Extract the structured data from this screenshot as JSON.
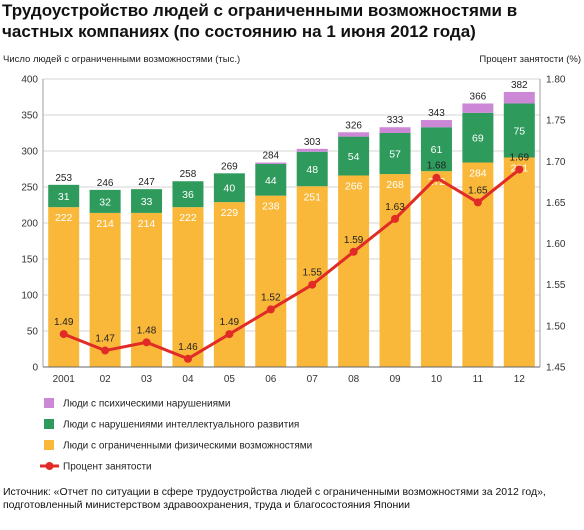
{
  "title": "Трудоустройство людей с ограниченными возможностями в частных компаниях (по состоянию на 1 июня 2012 года)",
  "source": "Источник: «Отчет по ситуации в сфере трудоустройства людей с ограниченными возможностями за 2012 год», подготовленный министерством здравоохранения, труда и благосостояния Японии",
  "colors": {
    "physical": "#f9b839",
    "intellectual": "#2e9b5c",
    "mental": "#cc88d6",
    "percent_line": "#e02b26",
    "grid": "#c8c8c8"
  },
  "chart_data": {
    "type": "bar",
    "stacked": true,
    "categories": [
      "2001",
      "02",
      "03",
      "04",
      "05",
      "06",
      "07",
      "08",
      "09",
      "10",
      "11",
      "12"
    ],
    "y_left_label": "Число людей с ограниченными возможностями (тыс.)",
    "y_right_label": "Процент занятости (%)",
    "ylim_left": [
      0,
      400
    ],
    "ylim_right": [
      1.45,
      1.8
    ],
    "y_left_ticks": [
      "0",
      "50",
      "100",
      "150",
      "200",
      "250",
      "300",
      "350",
      "400"
    ],
    "y_right_ticks": [
      "1.45",
      "1.50",
      "1.55",
      "1.60",
      "1.65",
      "1.70",
      "1.75",
      "1.80"
    ],
    "grid": true,
    "series": [
      {
        "name": "Люди с ограниченными физическими возможностями",
        "key": "physical",
        "values": [
          222,
          214,
          214,
          222,
          229,
          238,
          251,
          266,
          268,
          272,
          284,
          291
        ],
        "labels": [
          "222",
          "214",
          "214",
          "222",
          "229",
          "238",
          "251",
          "266",
          "268",
          "272",
          "284",
          "291"
        ]
      },
      {
        "name": "Люди с нарушениями интеллектуального развития",
        "key": "intellectual",
        "values": [
          31,
          32,
          33,
          36,
          40,
          44,
          48,
          54,
          57,
          61,
          69,
          75
        ],
        "labels": [
          "31",
          "32",
          "33",
          "36",
          "40",
          "44",
          "48",
          "54",
          "57",
          "61",
          "69",
          "75"
        ]
      },
      {
        "name": "Люди с психическими нарушениями",
        "key": "mental",
        "values": [
          0,
          0,
          0,
          0,
          0,
          2,
          4,
          6,
          8,
          10,
          13,
          16
        ],
        "labels": [
          "",
          "",
          "",
          "",
          "",
          "",
          "",
          "",
          "",
          "",
          "",
          ""
        ]
      }
    ],
    "totals": [
      253,
      246,
      247,
      258,
      269,
      284,
      303,
      326,
      333,
      343,
      366,
      382
    ],
    "total_labels": [
      "253",
      "246",
      "247",
      "258",
      "269",
      "284",
      "303",
      "326",
      "333",
      "343",
      "366",
      "382"
    ],
    "line": {
      "name": "Процент занятости",
      "values": [
        1.49,
        1.47,
        1.48,
        1.46,
        1.49,
        1.52,
        1.55,
        1.59,
        1.63,
        1.68,
        1.65,
        1.69
      ],
      "labels": [
        "1.49",
        "1.47",
        "1.48",
        "1.46",
        "1.49",
        "1.52",
        "1.55",
        "1.59",
        "1.63",
        "1.68",
        "1.65",
        "1.69"
      ]
    },
    "legend_order": [
      "mental",
      "intellectual",
      "physical",
      "line"
    ],
    "legend_placement": "bottom-left"
  }
}
